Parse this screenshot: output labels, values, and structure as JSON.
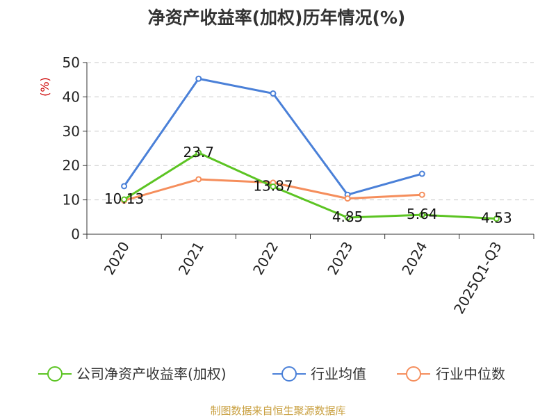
{
  "chart_data": {
    "type": "line",
    "title": "净资产收益率(加权)历年情况(%)",
    "ylabel": "(%)",
    "xlabel": "",
    "ylim": [
      0,
      50
    ],
    "yticks": [
      0,
      10,
      20,
      30,
      40,
      50
    ],
    "grid": true,
    "categories": [
      "2020",
      "2021",
      "2022",
      "2023",
      "2024",
      "2025Q1-Q3"
    ],
    "legend_position": "bottom",
    "series": [
      {
        "name": "公司净资产收益率(加权)",
        "color": "#5cc423",
        "values": [
          10.13,
          23.7,
          13.87,
          4.85,
          5.64,
          4.53
        ],
        "labels": [
          "10.13",
          "23.7",
          "13.87",
          "4.85",
          "5.64",
          "4.53"
        ]
      },
      {
        "name": "行业均值",
        "color": "#4a80d8",
        "values": [
          14.0,
          45.3,
          41.0,
          11.5,
          17.6,
          null
        ]
      },
      {
        "name": "行业中位数",
        "color": "#f58e5c",
        "values": [
          9.8,
          16.0,
          15.0,
          10.4,
          11.5,
          null
        ]
      }
    ]
  },
  "source": "制图数据来自恒生聚源数据库"
}
